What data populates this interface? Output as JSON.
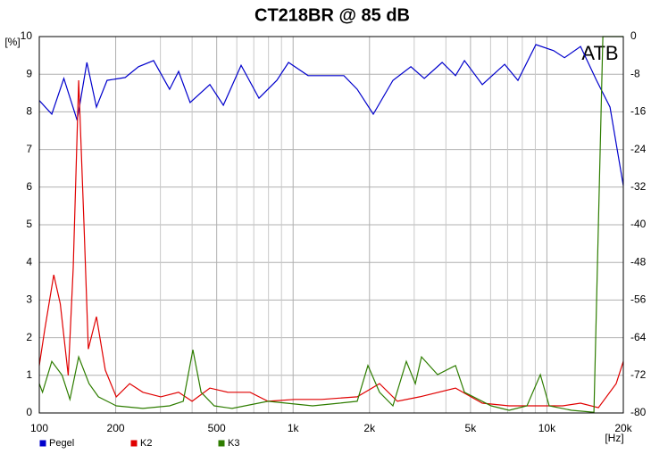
{
  "chart_data": {
    "type": "line",
    "title": "CT218BR @ 85 dB",
    "y_label": "[%]",
    "x_label": "[Hz]",
    "annotation": "ATB",
    "xscale": "log",
    "grid": true,
    "legend": "bottom",
    "xlim": [
      100,
      20000
    ],
    "xticks": [
      100,
      200,
      500,
      {
        "value": 1000,
        "label": "1k"
      },
      {
        "value": 2000,
        "label": "2k"
      },
      {
        "value": 5000,
        "label": "5k"
      },
      {
        "value": 10000,
        "label": "10k"
      },
      {
        "value": 20000,
        "label": "20k"
      }
    ],
    "x_minor_ticks": [
      300,
      400,
      600,
      700,
      800,
      900,
      3000,
      4000,
      6000,
      7000,
      8000,
      9000
    ],
    "ylim": [
      0,
      10
    ],
    "yticks": [
      0,
      1,
      2,
      3,
      4,
      5,
      6,
      7,
      8,
      9,
      10
    ],
    "y2lim": [
      -80,
      0
    ],
    "y2ticks": [
      -80,
      -72,
      -64,
      -56,
      -48,
      -40,
      -32,
      -24,
      -16,
      -8,
      0
    ],
    "series": [
      {
        "name": "Pegel",
        "color": "#0000cc",
        "axis": "y2",
        "x": [
          100,
          112,
          125,
          141,
          154,
          168,
          185,
          218,
          246,
          282,
          326,
          354,
          393,
          470,
          531,
          624,
          734,
          863,
          959,
          1146,
          1585,
          1789,
          2070,
          2474,
          2910,
          3286,
          3864,
          4363,
          4731,
          5563,
          6812,
          7691,
          9046,
          10635,
          11722,
          13563,
          15690,
          17721,
          20000
        ],
        "values": [
          -13.6,
          -16.5,
          -8.9,
          -17.8,
          -5.5,
          -15,
          -9.3,
          -8.7,
          -6.4,
          -5.1,
          -11.2,
          -7.4,
          -14,
          -10.2,
          -14.6,
          -6.1,
          -13.1,
          -9.3,
          -5.5,
          -8.3,
          -8.3,
          -11.2,
          -16.5,
          -9.3,
          -6.4,
          -8.9,
          -5.5,
          -8.3,
          -5.1,
          -10.2,
          -5.9,
          -9.3,
          -1.7,
          -3,
          -4.5,
          -2.1,
          -9.3,
          -15,
          -31.7
        ]
      },
      {
        "name": "K2",
        "color": "#e00000",
        "x": [
          100,
          105,
          114,
          121,
          130,
          136,
          143,
          150,
          156,
          168,
          182,
          201,
          227,
          256,
          301,
          354,
          400,
          470,
          553,
          677,
          796,
          1015,
          1294,
          1789,
          2191,
          2576,
          3155,
          4363,
          5563,
          7094,
          9046,
          11533,
          13563,
          15948,
          18750,
          20000
        ],
        "values": [
          1.26,
          2.2,
          3.67,
          2.9,
          1.0,
          3.86,
          8.84,
          5.05,
          1.7,
          2.56,
          1.14,
          0.43,
          0.78,
          0.55,
          0.43,
          0.55,
          0.31,
          0.66,
          0.55,
          0.55,
          0.31,
          0.36,
          0.36,
          0.43,
          0.78,
          0.31,
          0.43,
          0.66,
          0.26,
          0.19,
          0.19,
          0.19,
          0.26,
          0.14,
          0.78,
          1.37
        ]
      },
      {
        "name": "K3",
        "color": "#2e7d00",
        "x": [
          100,
          103,
          112,
          123,
          132,
          143,
          157,
          171,
          201,
          256,
          326,
          369,
          403,
          434,
          489,
          575,
          796,
          1193,
          1522,
          1789,
          1971,
          2191,
          2474,
          2794,
          3030,
          3206,
          3710,
          4363,
          4731,
          6031,
          7094,
          8343,
          9419,
          10212,
          12503,
          15316,
          16610,
          20000
        ],
        "values": [
          0.78,
          0.55,
          1.37,
          1.0,
          0.36,
          1.49,
          0.78,
          0.43,
          0.19,
          0.12,
          0.19,
          0.31,
          1.68,
          0.55,
          0.19,
          0.12,
          0.31,
          0.19,
          0.26,
          0.31,
          1.26,
          0.55,
          0.19,
          1.37,
          0.78,
          1.49,
          1.02,
          1.26,
          0.55,
          0.19,
          0.07,
          0.19,
          1.02,
          0.19,
          0.07,
          0.02,
          10,
          10
        ]
      }
    ]
  }
}
